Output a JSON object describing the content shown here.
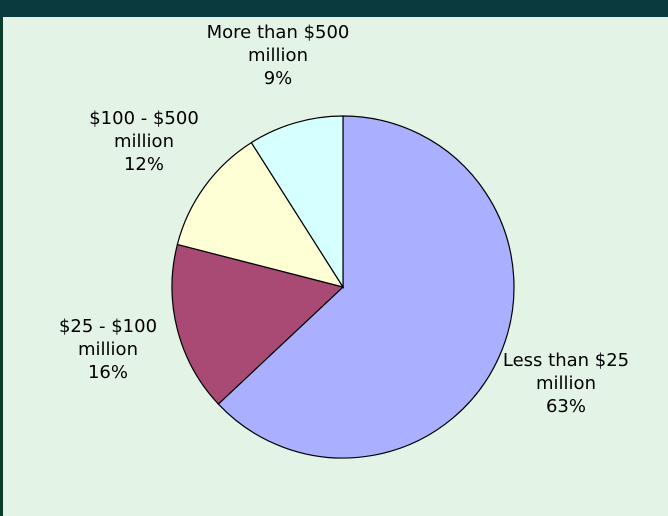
{
  "chart_data": {
    "type": "pie",
    "slices": [
      {
        "label": [
          "Less than $25",
          "million"
        ],
        "pct_text": "63%",
        "value": 63,
        "color": "#aab0ff"
      },
      {
        "label": [
          "$25 - $100",
          "million"
        ],
        "pct_text": "16%",
        "value": 16,
        "color": "#a84a74"
      },
      {
        "label": [
          "$100 - $500",
          "million"
        ],
        "pct_text": "12%",
        "value": 12,
        "color": "#ffffd6"
      },
      {
        "label": [
          "More than $500",
          "million"
        ],
        "pct_text": "9%",
        "value": 9,
        "color": "#d6ffff"
      }
    ]
  }
}
